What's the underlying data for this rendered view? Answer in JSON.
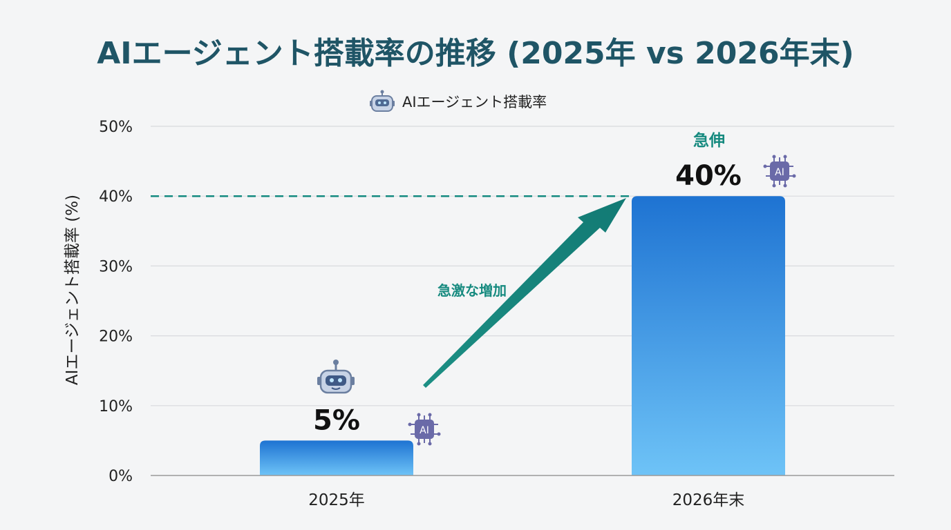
{
  "chart_data": {
    "type": "bar",
    "title": "AIエージェント搭載率の推移 (2025年 vs 2026年末)",
    "legend": {
      "label": "AIエージェント搭載率",
      "icon": "robot-icon",
      "position": "top-center"
    },
    "ylabel": "AIエージェント搭載率 (%)",
    "xlabel": "",
    "ylim": [
      0,
      50
    ],
    "yticks": [
      "0%",
      "10%",
      "20%",
      "30%",
      "40%",
      "50%"
    ],
    "yticks_values": [
      0,
      10,
      20,
      30,
      40,
      50
    ],
    "grid": true,
    "categories": [
      "2025年",
      "2026年末"
    ],
    "series": [
      {
        "name": "AIエージェント搭載率",
        "values": [
          5,
          40
        ]
      }
    ],
    "data_labels": [
      "5%",
      "40%"
    ],
    "annotations": {
      "arrow_label": "急激な増加",
      "top_label": "急伸",
      "reference_line_value": 40
    },
    "colors": {
      "title": "#1f5566",
      "bar_top": "#1e73d2",
      "bar_bottom": "#6ec3f7",
      "accent": "#138a80",
      "chip": "#6a6aa8",
      "grid": "#d8dadd",
      "axis": "#999999"
    }
  }
}
